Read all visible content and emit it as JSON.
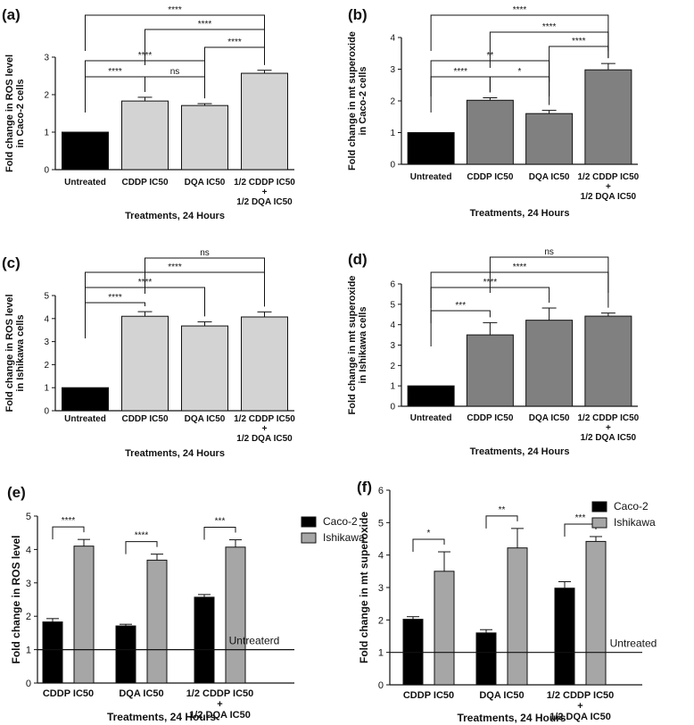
{
  "colors": {
    "black": "#000000",
    "light_gray": "#d3d3d3",
    "mid_gray": "#808080",
    "legend_gray": "#a6a6a6"
  },
  "chart_data": [
    {
      "id": "a",
      "panel_label": "(a)",
      "type": "bar",
      "categories": [
        "Untreated",
        "CDDP IC50",
        "DQA IC50",
        "1/2 CDDP IC50\n+\n1/2 DQA IC50"
      ],
      "values": [
        1.0,
        1.83,
        1.71,
        2.57
      ],
      "errors": [
        0,
        0.1,
        0.05,
        0.08
      ],
      "bar_colors": [
        "#000000",
        "#d3d3d3",
        "#d3d3d3",
        "#d3d3d3"
      ],
      "ylabel": "Fold change in ROS level\nin Caco-2 cells",
      "xlabel": "Treatments, 24 Hours",
      "ylim": [
        0,
        3
      ],
      "yticks": [
        0,
        1,
        2,
        3
      ],
      "significance": [
        {
          "from": 0,
          "to": 1,
          "label": "****"
        },
        {
          "from": 0,
          "to": 2,
          "label": "****"
        },
        {
          "from": 1,
          "to": 2,
          "label": "ns"
        },
        {
          "from": 2,
          "to": 3,
          "label": "****"
        },
        {
          "from": 1,
          "to": 3,
          "label": "****"
        },
        {
          "from": 0,
          "to": 3,
          "label": "****"
        }
      ]
    },
    {
      "id": "b",
      "panel_label": "(b)",
      "type": "bar",
      "categories": [
        "Untreated",
        "CDDP IC50",
        "DQA IC50",
        "1/2 CDDP IC50\n+\n1/2 DQA IC50"
      ],
      "values": [
        1.0,
        2.02,
        1.6,
        2.98
      ],
      "errors": [
        0,
        0.08,
        0.1,
        0.2
      ],
      "bar_colors": [
        "#000000",
        "#808080",
        "#808080",
        "#808080"
      ],
      "ylabel": "Fold change in mt superoxide\nin Caco-2 cells",
      "xlabel": "Treatments, 24 Hours",
      "ylim": [
        0,
        4
      ],
      "yticks": [
        0,
        1,
        2,
        3,
        4
      ],
      "significance": [
        {
          "from": 0,
          "to": 1,
          "label": "****"
        },
        {
          "from": 0,
          "to": 2,
          "label": "**"
        },
        {
          "from": 1,
          "to": 2,
          "label": "*"
        },
        {
          "from": 2,
          "to": 3,
          "label": "****"
        },
        {
          "from": 1,
          "to": 3,
          "label": "****"
        },
        {
          "from": 0,
          "to": 3,
          "label": "****"
        }
      ]
    },
    {
      "id": "c",
      "panel_label": "(c)",
      "type": "bar",
      "categories": [
        "Untreated",
        "CDDP IC50",
        "DQA IC50",
        "1/2 CDDP IC50\n+\n1/2 DQA IC50"
      ],
      "values": [
        1.0,
        4.1,
        3.68,
        4.07
      ],
      "errors": [
        0,
        0.2,
        0.18,
        0.22
      ],
      "bar_colors": [
        "#000000",
        "#d3d3d3",
        "#d3d3d3",
        "#d3d3d3"
      ],
      "ylabel": "Fold change in ROS level\nin Ishikawa cells",
      "xlabel": "Treatments, 24 Hours",
      "ylim": [
        0,
        5
      ],
      "yticks": [
        0,
        1,
        2,
        3,
        4,
        5
      ],
      "significance": [
        {
          "from": 0,
          "to": 1,
          "label": "****"
        },
        {
          "from": 0,
          "to": 2,
          "label": "****"
        },
        {
          "from": 0,
          "to": 3,
          "label": "****"
        },
        {
          "from": 1,
          "to": 3,
          "label": "ns"
        }
      ]
    },
    {
      "id": "d",
      "panel_label": "(d)",
      "type": "bar",
      "categories": [
        "Untreated",
        "CDDP IC50",
        "DQA IC50",
        "1/2 CDDP IC50\n+\n1/2 DQA IC50"
      ],
      "values": [
        1.0,
        3.5,
        4.22,
        4.42
      ],
      "errors": [
        0,
        0.6,
        0.6,
        0.15
      ],
      "bar_colors": [
        "#000000",
        "#808080",
        "#808080",
        "#808080"
      ],
      "ylabel": "Fold change in mt superoxide\nin Ishikawa cells",
      "xlabel": "Treatments, 24 Hours",
      "ylim": [
        0,
        6
      ],
      "yticks": [
        0,
        1,
        2,
        3,
        4,
        5,
        6
      ],
      "significance": [
        {
          "from": 0,
          "to": 1,
          "label": "***"
        },
        {
          "from": 0,
          "to": 2,
          "label": "****"
        },
        {
          "from": 0,
          "to": 3,
          "label": "****"
        },
        {
          "from": 1,
          "to": 3,
          "label": "ns"
        }
      ]
    },
    {
      "id": "e",
      "panel_label": "(e)",
      "type": "bar",
      "categories": [
        "CDDP IC50",
        "DQA IC50",
        "1/2 CDDP IC50\n+\n1/2 DQA IC50"
      ],
      "series": [
        {
          "name": "Caco-2",
          "values": [
            1.83,
            1.71,
            2.57
          ],
          "errors": [
            0.1,
            0.05,
            0.08
          ],
          "color": "#000000"
        },
        {
          "name": "Ishikawa",
          "values": [
            4.1,
            3.68,
            4.07
          ],
          "errors": [
            0.2,
            0.18,
            0.22
          ],
          "color": "#a6a6a6"
        }
      ],
      "reference_line": {
        "value": 1,
        "label": "Untreaterd"
      },
      "ylabel": "Fold change in ROS level",
      "xlabel": "Treatments, 24 Hours",
      "ylim": [
        0,
        5
      ],
      "yticks": [
        0,
        1,
        2,
        3,
        4,
        5
      ],
      "significance": [
        "****",
        "****",
        "***"
      ],
      "legend": "right"
    },
    {
      "id": "f",
      "panel_label": "(f)",
      "type": "bar",
      "categories": [
        "CDDP IC50",
        "DQA IC50",
        "1/2 CDDP IC50\n+\n1/2 DQA IC50"
      ],
      "series": [
        {
          "name": "Caco-2",
          "values": [
            2.02,
            1.6,
            2.98
          ],
          "errors": [
            0.08,
            0.1,
            0.2
          ],
          "color": "#000000"
        },
        {
          "name": "Ishikawa",
          "values": [
            3.5,
            4.22,
            4.42
          ],
          "errors": [
            0.6,
            0.6,
            0.15
          ],
          "color": "#a6a6a6"
        }
      ],
      "reference_line": {
        "value": 1,
        "label": "Untreated"
      },
      "ylabel": "Fold change in mt superoxide",
      "xlabel": "Treatments, 24 Hours",
      "ylim": [
        0,
        6
      ],
      "yticks": [
        0,
        1,
        2,
        3,
        4,
        5,
        6
      ],
      "significance": [
        "*",
        "**",
        "***"
      ],
      "legend": "right"
    }
  ]
}
